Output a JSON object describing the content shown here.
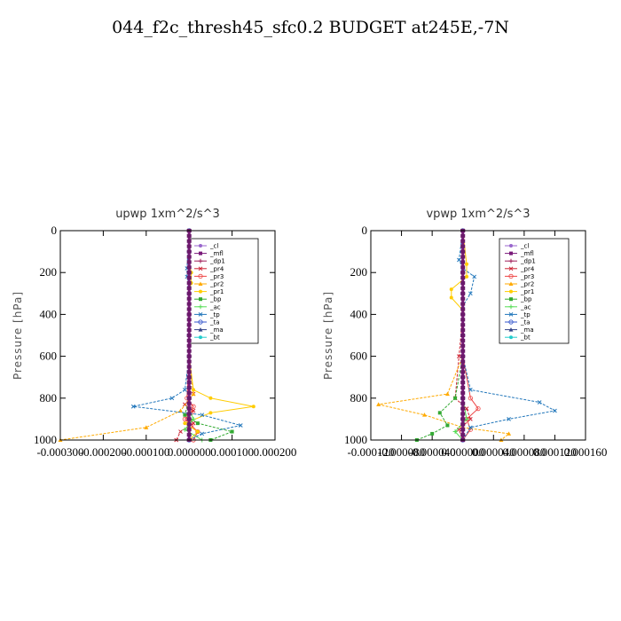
{
  "title": "044_f2c_thresh45_sfc0.2  BUDGET at245E,-7N",
  "chart_data": [
    {
      "type": "line",
      "title": "upwp   1xm^2/s^3",
      "ylabel": "Pressure [hPa]",
      "ylim": [
        1000,
        0
      ],
      "yticks": [
        "0",
        "200",
        "400",
        "600",
        "800",
        "1000"
      ],
      "xlim": [
        -0.0003,
        0.0002
      ],
      "xticks": [
        "-0.000300",
        "-0.000200",
        "-0.000100",
        "0.000000",
        "0.000100",
        "0.000200"
      ],
      "legend_position": "top-right",
      "series": [
        {
          "name": "_cl",
          "color": "#9966cc",
          "x": [
            0,
            0,
            0,
            0,
            0,
            0,
            0,
            0,
            0,
            0,
            0
          ],
          "y": [
            0,
            100,
            200,
            300,
            400,
            500,
            600,
            700,
            800,
            900,
            1000
          ]
        },
        {
          "name": "_mfl",
          "color": "#7a1a7a",
          "x": [
            0,
            0,
            0,
            0,
            0,
            0,
            0,
            0,
            0,
            0,
            0
          ],
          "y": [
            0,
            100,
            200,
            300,
            400,
            500,
            600,
            700,
            800,
            900,
            1000
          ]
        },
        {
          "name": "_dp1",
          "color": "#a0205a",
          "x": [
            0,
            0,
            0,
            0,
            0,
            0,
            0,
            0,
            0,
            0,
            0
          ],
          "y": [
            0,
            100,
            200,
            300,
            400,
            500,
            600,
            700,
            800,
            900,
            1000
          ]
        },
        {
          "name": "_pr4",
          "color": "#cc2233",
          "x": [
            0,
            0,
            0,
            0,
            1e-05,
            -1e-05,
            1e-05,
            -5e-06,
            1e-05,
            -2e-05,
            -3e-05
          ],
          "y": [
            0,
            200,
            400,
            600,
            780,
            830,
            860,
            880,
            920,
            960,
            1000
          ]
        },
        {
          "name": "_pr3",
          "color": "#ee4444",
          "x": [
            0,
            0,
            0,
            0,
            -5e-06,
            1e-05,
            5e-06,
            -1e-05,
            5e-06,
            2e-05,
            1e-05
          ],
          "y": [
            0,
            200,
            400,
            600,
            800,
            840,
            870,
            900,
            930,
            960,
            1000
          ]
        },
        {
          "name": "_pr2",
          "color": "#ffaa00",
          "x": [
            0,
            0,
            0,
            0,
            1e-05,
            -2e-05,
            -0.0001,
            -0.0003
          ],
          "y": [
            0,
            200,
            400,
            600,
            780,
            860,
            940,
            1000
          ]
        },
        {
          "name": "_pr1",
          "color": "#ffcc00",
          "x": [
            0,
            0,
            5e-06,
            5e-06,
            0,
            0,
            1e-05,
            5e-05,
            0.00015,
            5e-05,
            -1e-05,
            2e-05,
            0
          ],
          "y": [
            0,
            150,
            200,
            250,
            300,
            600,
            760,
            800,
            840,
            870,
            920,
            960,
            1000
          ]
        },
        {
          "name": "_bp",
          "color": "#33aa33",
          "x": [
            0,
            0,
            0,
            -1e-05,
            2e-05,
            0.0001,
            5e-05
          ],
          "y": [
            0,
            600,
            800,
            880,
            920,
            960,
            1000
          ]
        },
        {
          "name": "_ac",
          "color": "#55dd55",
          "x": [
            0,
            0,
            0,
            1e-05,
            -1e-05,
            3e-05
          ],
          "y": [
            0,
            600,
            850,
            900,
            950,
            1000
          ]
        },
        {
          "name": "_tp",
          "color": "#2277bb",
          "x": [
            0,
            -5e-06,
            -5e-06,
            0,
            0,
            -1e-05,
            -4e-05,
            -0.00013,
            3e-05,
            0.00012,
            3e-05,
            0
          ],
          "y": [
            0,
            180,
            220,
            260,
            600,
            760,
            800,
            840,
            880,
            930,
            970,
            1000
          ]
        },
        {
          "name": "_ta",
          "color": "#3355cc",
          "x": [
            0,
            0,
            0,
            0,
            0,
            0,
            0,
            0,
            0,
            0,
            0
          ],
          "y": [
            0,
            100,
            200,
            300,
            400,
            500,
            600,
            700,
            800,
            900,
            1000
          ]
        },
        {
          "name": "_ma",
          "color": "#334488",
          "x": [
            0,
            0,
            0,
            0,
            0,
            0,
            0,
            0,
            0,
            0,
            0
          ],
          "y": [
            0,
            100,
            200,
            300,
            400,
            500,
            600,
            700,
            800,
            900,
            1000
          ]
        },
        {
          "name": "_bt",
          "color": "#22cccc",
          "x": [
            0,
            0,
            0,
            0,
            0,
            0,
            0,
            0,
            0,
            0,
            0
          ],
          "y": [
            0,
            100,
            200,
            300,
            400,
            500,
            600,
            700,
            800,
            900,
            1000
          ]
        }
      ]
    },
    {
      "type": "line",
      "title": "vpwp   1xm^2/s^3",
      "ylabel": "Pressure [hPa]",
      "ylim": [
        1000,
        0
      ],
      "yticks": [
        "0",
        "200",
        "400",
        "600",
        "800",
        "1000"
      ],
      "xlim": [
        -0.00012,
        0.00016
      ],
      "xticks": [
        "-0.000120",
        "-0.000080",
        "-0.000040",
        "0.000000",
        "0.000040",
        "0.000080",
        "0.000120",
        "0.000160"
      ],
      "legend_position": "top-right",
      "series": [
        {
          "name": "_cl",
          "color": "#9966cc",
          "x": [
            0,
            0,
            0,
            0,
            0,
            0,
            0,
            0,
            0,
            0,
            0
          ],
          "y": [
            0,
            100,
            200,
            300,
            400,
            500,
            600,
            700,
            800,
            900,
            1000
          ]
        },
        {
          "name": "_mfl",
          "color": "#7a1a7a",
          "x": [
            0,
            0,
            0,
            0,
            0,
            0,
            0,
            0,
            0,
            0,
            0
          ],
          "y": [
            0,
            100,
            200,
            300,
            400,
            500,
            600,
            700,
            800,
            900,
            1000
          ]
        },
        {
          "name": "_dp1",
          "color": "#a0205a",
          "x": [
            0,
            0,
            0,
            0,
            0,
            0,
            0,
            0,
            0,
            0,
            0
          ],
          "y": [
            0,
            100,
            200,
            300,
            400,
            500,
            600,
            700,
            800,
            900,
            1000
          ]
        },
        {
          "name": "_pr4",
          "color": "#cc2233",
          "x": [
            0,
            0,
            0,
            -5e-06,
            -1e-05,
            5e-06,
            1e-05,
            -5e-06,
            0
          ],
          "y": [
            0,
            200,
            400,
            600,
            800,
            850,
            900,
            950,
            1000
          ]
        },
        {
          "name": "_pr3",
          "color": "#ee4444",
          "x": [
            0,
            0,
            0,
            0,
            1e-05,
            2e-05,
            5e-06,
            1e-05,
            0
          ],
          "y": [
            0,
            200,
            400,
            600,
            800,
            850,
            900,
            950,
            1000
          ]
        },
        {
          "name": "_pr2",
          "color": "#ffaa00",
          "x": [
            0,
            0,
            0,
            0,
            -2e-05,
            -0.00011,
            -5e-05,
            0,
            6e-05,
            5e-05
          ],
          "y": [
            0,
            200,
            400,
            600,
            780,
            830,
            880,
            940,
            970,
            1000
          ]
        },
        {
          "name": "_pr1",
          "color": "#ffcc00",
          "x": [
            0,
            5e-06,
            5e-06,
            -1.5e-05,
            -1.5e-05,
            0,
            0,
            0
          ],
          "y": [
            0,
            160,
            220,
            280,
            320,
            380,
            600,
            1000
          ]
        },
        {
          "name": "_bp",
          "color": "#33aa33",
          "x": [
            0,
            0,
            -1e-05,
            -3e-05,
            -2e-05,
            -4e-05,
            -6e-05
          ],
          "y": [
            0,
            600,
            800,
            870,
            930,
            970,
            1000
          ]
        },
        {
          "name": "_ac",
          "color": "#55dd55",
          "x": [
            0,
            0,
            5e-06,
            -1e-05,
            0
          ],
          "y": [
            0,
            800,
            900,
            960,
            1000
          ]
        },
        {
          "name": "_tp",
          "color": "#2277bb",
          "x": [
            0,
            -5e-06,
            0,
            1.5e-05,
            1e-05,
            0,
            0,
            1e-05,
            0.0001,
            0.00012,
            6e-05,
            1e-05,
            0
          ],
          "y": [
            0,
            140,
            180,
            220,
            300,
            360,
            600,
            760,
            820,
            860,
            900,
            940,
            1000
          ]
        },
        {
          "name": "_ta",
          "color": "#3355cc",
          "x": [
            0,
            0,
            0,
            0,
            0,
            0,
            0,
            0,
            0,
            0,
            0
          ],
          "y": [
            0,
            100,
            200,
            300,
            400,
            500,
            600,
            700,
            800,
            900,
            1000
          ]
        },
        {
          "name": "_ma",
          "color": "#334488",
          "x": [
            0,
            0,
            0,
            0,
            0,
            0,
            0,
            0,
            0,
            0,
            0
          ],
          "y": [
            0,
            100,
            200,
            300,
            400,
            500,
            600,
            700,
            800,
            900,
            1000
          ]
        },
        {
          "name": "_bt",
          "color": "#22cccc",
          "x": [
            0,
            0,
            0,
            0,
            0,
            0,
            0,
            0,
            0,
            0,
            0
          ],
          "y": [
            0,
            100,
            200,
            300,
            400,
            500,
            600,
            700,
            800,
            900,
            1000
          ]
        }
      ]
    }
  ]
}
